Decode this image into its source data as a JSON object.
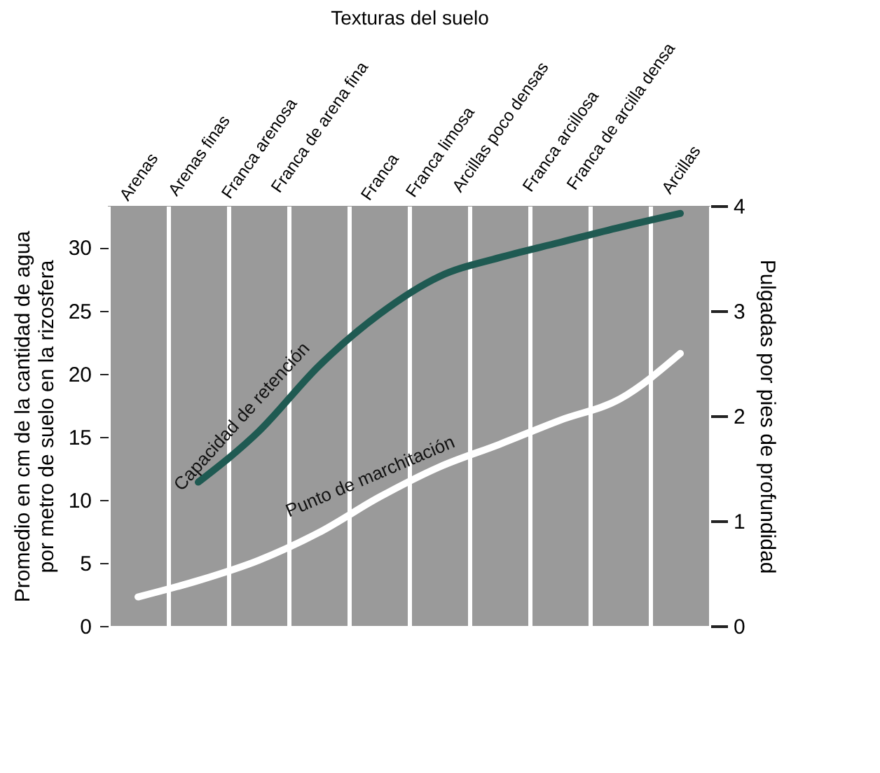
{
  "chart_data": {
    "type": "line",
    "xlabel": "Texturas del suelo",
    "ylabel": "Promedio en cm de la cantidad de agua por metro de suelo en la rizosfera",
    "y2label": "Pulgadas por pies de profundidad",
    "categories": [
      "Arenas",
      "Arenas finas",
      "Franca arenosa",
      "Franca de arena fina",
      "Franca",
      "Franca limosa",
      "Arcillas poco densas",
      "Franca arcillosa",
      "Franca de arcilla densa",
      "Arcillas"
    ],
    "series": [
      {
        "name": "Capacidad de retención",
        "color": "#1f5a52",
        "values": [
          null,
          11.4,
          15.4,
          20.6,
          24.7,
          27.7,
          29.2,
          30.4,
          31.6,
          32.7
        ]
      },
      {
        "name": "Punto de marchitación",
        "color": "#ffffff",
        "values": [
          2.3,
          3.6,
          5.2,
          7.4,
          10.2,
          12.6,
          14.4,
          16.3,
          18.0,
          21.6
        ]
      }
    ],
    "ylim": [
      0,
      33.3
    ],
    "yticks": [
      0,
      5,
      10,
      15,
      20,
      25,
      30
    ],
    "y2lim": [
      0,
      4
    ],
    "y2ticks": [
      0,
      1,
      2,
      3,
      4
    ],
    "grid": "x",
    "legend": false,
    "marker": "none",
    "line_style": "solid"
  }
}
